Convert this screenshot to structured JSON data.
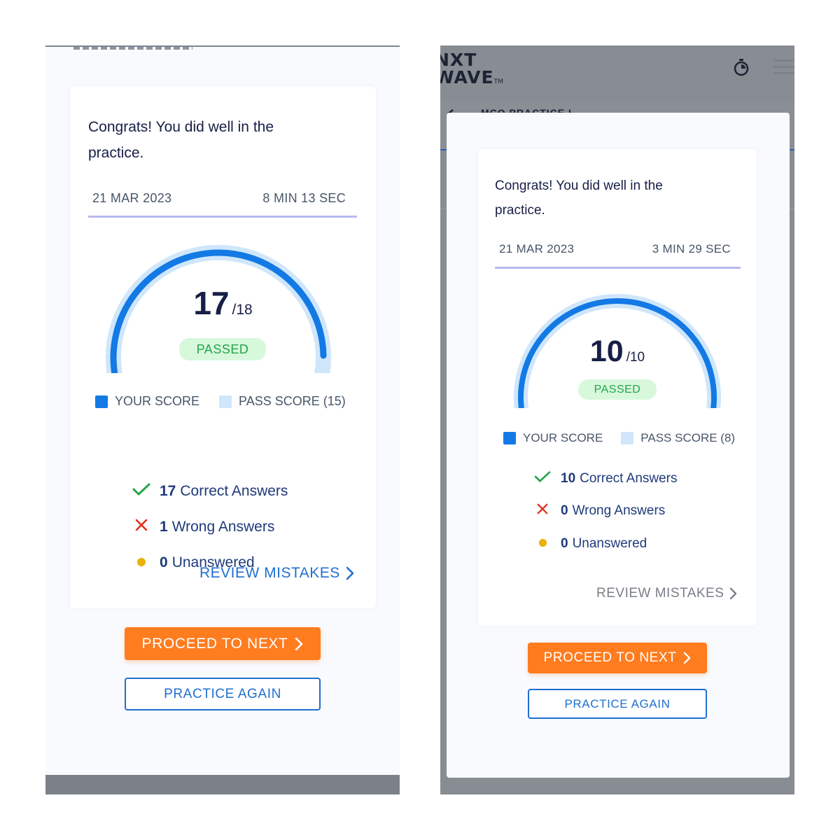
{
  "left": {
    "congrats": "Congrats! You did well in the practice.",
    "date": "21 MAR 2023",
    "duration": "8 MIN 13 SEC",
    "score": "17",
    "score_total": "/18",
    "score_fraction": 0.944,
    "pass_fraction": 0.833,
    "status": "PASSED",
    "legend_your": "YOUR SCORE",
    "legend_pass": "PASS SCORE (15)",
    "correct_count": "17",
    "correct_label": "Correct Answers",
    "wrong_count": "1",
    "wrong_label": "Wrong Answers",
    "unanswered_count": "0",
    "unanswered_label": "Unanswered",
    "review_label": "REVIEW MISTAKES",
    "review_enabled": true,
    "proceed_label": "PROCEED TO NEXT",
    "again_label": "PRACTICE AGAIN"
  },
  "right": {
    "brand_line1": "NXT",
    "brand_line2": "WAVE",
    "brand_tm": "TM",
    "behind_title": "MCQ PRACTICE I",
    "congrats": "Congrats! You did well in the practice.",
    "date": "21 MAR 2023",
    "duration": "3 MIN 29 SEC",
    "score": "10",
    "score_total": "/10",
    "score_fraction": 1.0,
    "pass_fraction": 0.8,
    "status": "PASSED",
    "legend_your": "YOUR SCORE",
    "legend_pass": "PASS SCORE (8)",
    "correct_count": "10",
    "correct_label": "Correct Answers",
    "wrong_count": "0",
    "wrong_label": "Wrong Answers",
    "unanswered_count": "0",
    "unanswered_label": "Unanswered",
    "review_label": "REVIEW MISTAKES",
    "review_enabled": false,
    "proceed_label": "PROCEED TO NEXT",
    "again_label": "PRACTICE AGAIN"
  },
  "icons": {
    "correct": "check-icon",
    "wrong": "cross-icon",
    "unanswered": "dot-icon",
    "review": "chevron-right-icon",
    "proceed": "chevron-right-icon",
    "timer": "stopwatch-icon",
    "menu": "hamburger-menu-icon"
  },
  "colors": {
    "accent_blue": "#1379e4",
    "pass_light_blue": "#cfe6fb",
    "proceed_orange": "#ff7c1f",
    "passed_green": "#23a54a",
    "passed_bg": "#d8f8dc",
    "wrong_red": "#e0301e",
    "unanswered_yellow": "#e8b10c",
    "disabled_gray": "#7a7f87"
  }
}
